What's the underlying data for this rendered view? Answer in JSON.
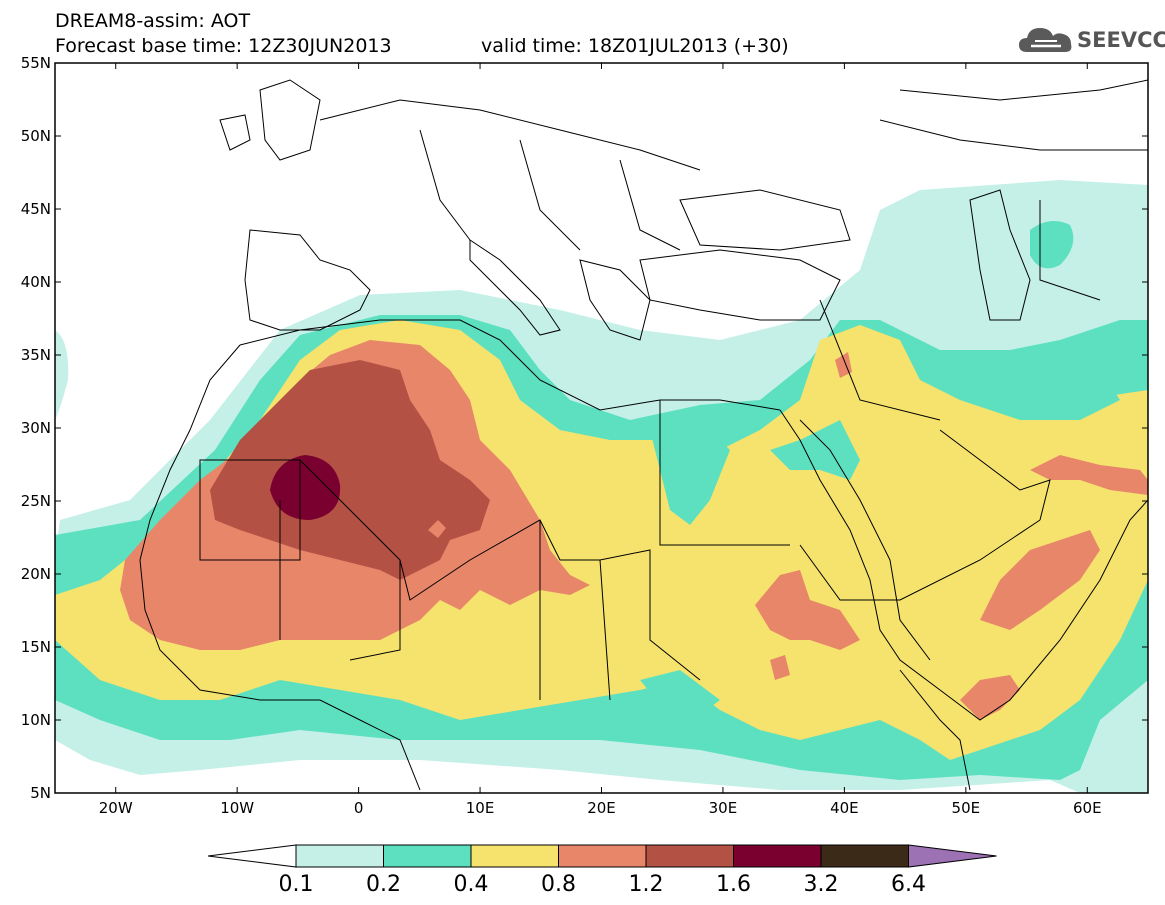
{
  "header": {
    "line1": "DREAM8-assim: AOT",
    "line2_base": "Forecast base time: 12Z30JUN2013",
    "line2_valid": "valid time: 18Z01JUL2013 (+30)"
  },
  "logo": {
    "text": "SEEVCCC",
    "icon": "cloud-icon"
  },
  "map": {
    "lat_labels": [
      "55N",
      "50N",
      "45N",
      "40N",
      "35N",
      "30N",
      "25N",
      "20N",
      "15N",
      "10N",
      "5N"
    ],
    "lon_labels": [
      "20W",
      "10W",
      "0",
      "10E",
      "20E",
      "30E",
      "40E",
      "50E",
      "60E"
    ],
    "lat_range": [
      5,
      55
    ],
    "lon_range": [
      -25,
      65
    ]
  },
  "colorbar": {
    "levels": [
      "0.1",
      "0.2",
      "0.4",
      "0.8",
      "1.2",
      "1.6",
      "3.2",
      "6.4"
    ],
    "colors": [
      "#ffffff",
      "#c4f0e8",
      "#5ce0c0",
      "#f5e36e",
      "#e8866a",
      "#b35145",
      "#7a0030",
      "#3c2a18",
      "#9c72b4"
    ]
  },
  "palette": {
    "c01": "#c4f0e8",
    "c02": "#5ce0c0",
    "c04": "#f5e36e",
    "c08": "#e8866a",
    "c12": "#b35145",
    "c16": "#7a0030"
  }
}
